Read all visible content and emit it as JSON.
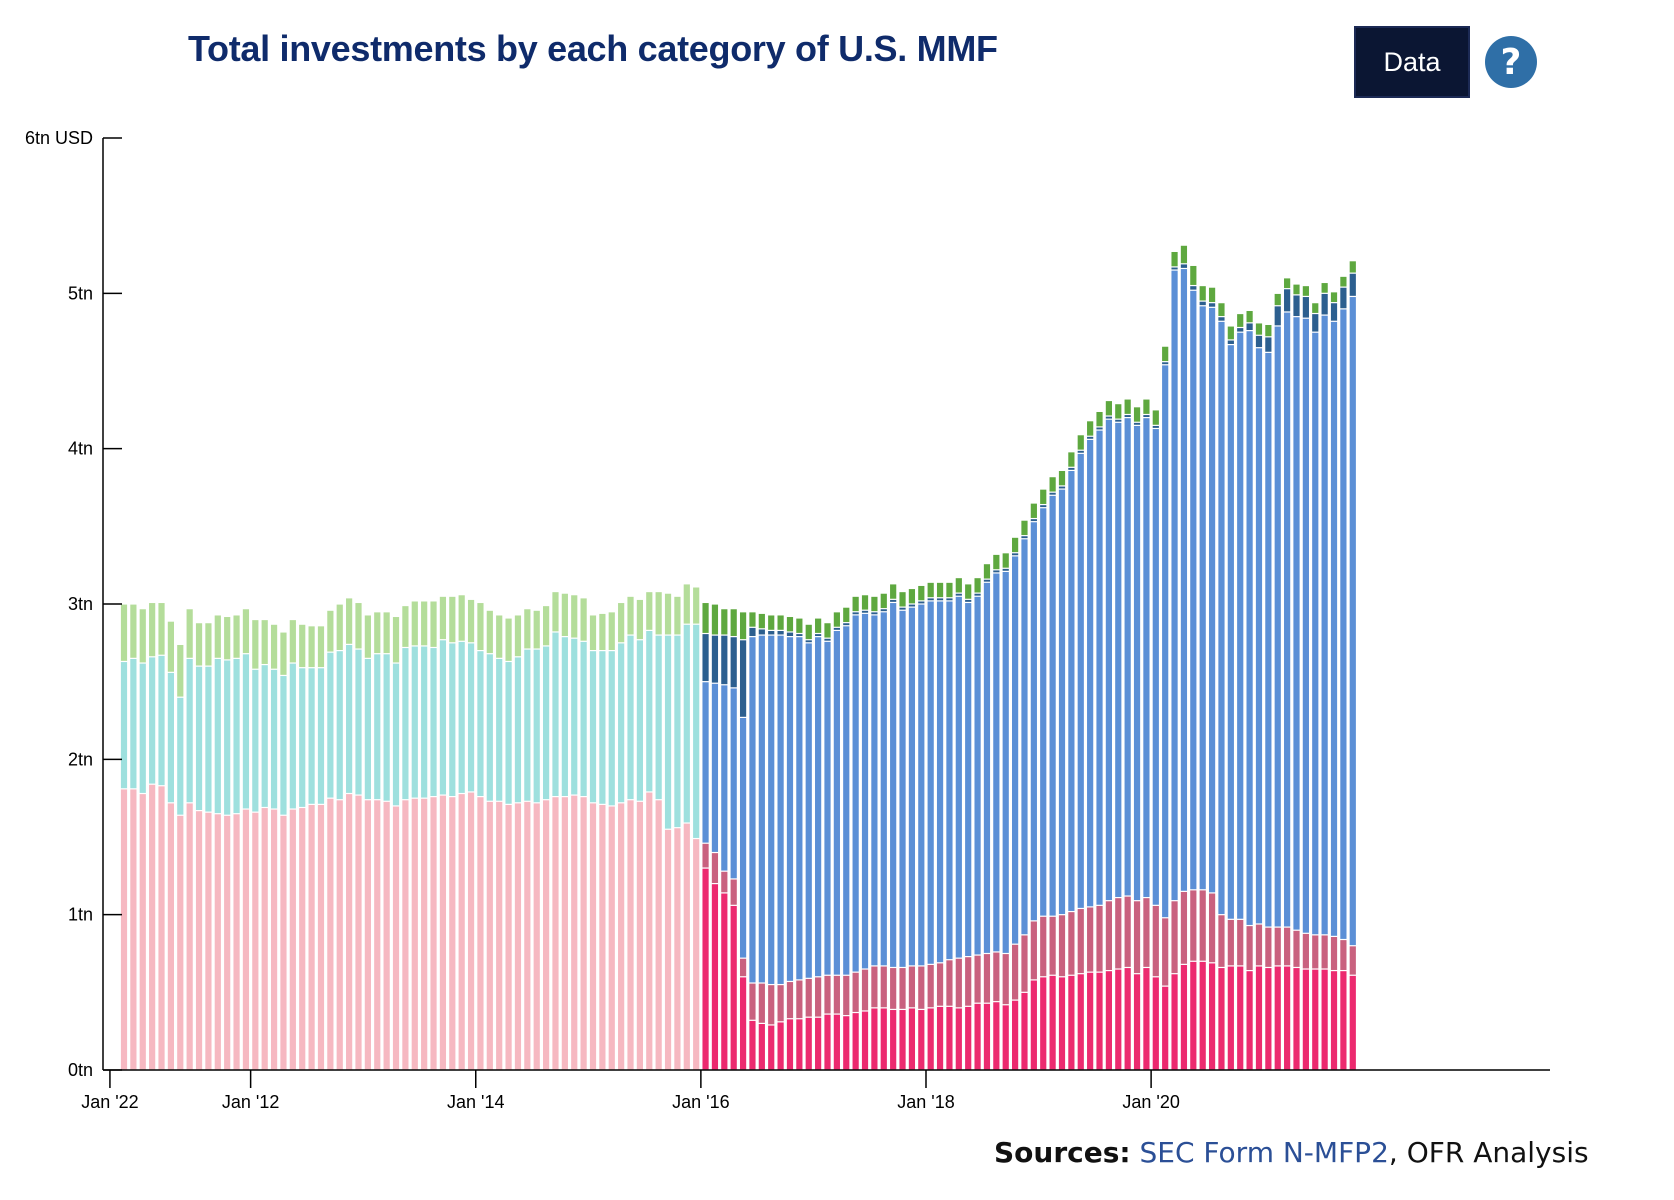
{
  "title": "Total investments by each category of U.S. MMF",
  "data_button": "Data",
  "help_icon": "question-circle-icon",
  "help_glyph": "?",
  "sources": {
    "label": "Sources:",
    "link_text": "SEC Form N-MFP2",
    "separator": ", ",
    "rest": "OFR Analysis"
  },
  "chart_data": {
    "type": "bar",
    "stacked": true,
    "ylim": [
      0,
      6
    ],
    "y_ticks": [
      {
        "value": 0,
        "label": "0tn"
      },
      {
        "value": 1,
        "label": "1tn"
      },
      {
        "value": 2,
        "label": "2tn"
      },
      {
        "value": 3,
        "label": "3tn"
      },
      {
        "value": 4,
        "label": "4tn"
      },
      {
        "value": 5,
        "label": "5tn"
      },
      {
        "value": 6,
        "label": "6tn USD"
      }
    ],
    "x_ticks": [
      {
        "month": "2012-01",
        "label": "Jan '12"
      },
      {
        "month": "2014-01",
        "label": "Jan '14"
      },
      {
        "month": "2016-01",
        "label": "Jan '16"
      },
      {
        "month": "2018-01",
        "label": "Jan '18"
      },
      {
        "month": "2020-01",
        "label": "Jan '20"
      },
      {
        "month": "2022-01",
        "label": "Jan '22"
      }
    ],
    "grid": false,
    "legend": "none",
    "months": [
      "2010-11",
      "2010-12",
      "2011-01",
      "2011-02",
      "2011-03",
      "2011-04",
      "2011-05",
      "2011-06",
      "2011-07",
      "2011-08",
      "2011-09",
      "2011-10",
      "2011-11",
      "2011-12",
      "2012-01",
      "2012-02",
      "2012-03",
      "2012-04",
      "2012-05",
      "2012-06",
      "2012-07",
      "2012-08",
      "2012-09",
      "2012-10",
      "2012-11",
      "2012-12",
      "2013-01",
      "2013-02",
      "2013-03",
      "2013-04",
      "2013-05",
      "2013-06",
      "2013-07",
      "2013-08",
      "2013-09",
      "2013-10",
      "2013-11",
      "2013-12",
      "2014-01",
      "2014-02",
      "2014-03",
      "2014-04",
      "2014-05",
      "2014-06",
      "2014-07",
      "2014-08",
      "2014-09",
      "2014-10",
      "2014-11",
      "2014-12",
      "2015-01",
      "2015-02",
      "2015-03",
      "2015-04",
      "2015-05",
      "2015-06",
      "2015-07",
      "2015-08",
      "2015-09",
      "2015-10",
      "2015-11",
      "2015-12",
      "2016-01",
      "2016-02",
      "2016-03",
      "2016-04",
      "2016-05",
      "2016-06",
      "2016-07",
      "2016-08",
      "2016-09",
      "2016-10",
      "2016-11",
      "2016-12",
      "2017-01",
      "2017-02",
      "2017-03",
      "2017-04",
      "2017-05",
      "2017-06",
      "2017-07",
      "2017-08",
      "2017-09",
      "2017-10",
      "2017-11",
      "2017-12",
      "2018-01",
      "2018-02",
      "2018-03",
      "2018-04",
      "2018-05",
      "2018-06",
      "2018-07",
      "2018-08",
      "2018-09",
      "2018-10",
      "2018-11",
      "2018-12",
      "2019-01",
      "2019-02",
      "2019-03",
      "2019-04",
      "2019-05",
      "2019-06",
      "2019-07",
      "2019-08",
      "2019-09",
      "2019-10",
      "2019-11",
      "2019-12",
      "2020-01",
      "2020-02",
      "2020-03",
      "2020-04",
      "2020-05",
      "2020-06",
      "2020-07",
      "2020-08",
      "2020-09",
      "2020-10",
      "2020-11",
      "2020-12",
      "2021-01",
      "2021-02",
      "2021-03",
      "2021-04",
      "2021-05",
      "2021-06",
      "2021-07",
      "2021-08",
      "2021-09",
      "2021-10",
      "2021-11",
      "2021-12"
    ],
    "series": [
      {
        "color": "#f6b8c1",
        "values": [
          1.81,
          1.81,
          1.78,
          1.84,
          1.83,
          1.72,
          1.64,
          1.72,
          1.67,
          1.66,
          1.65,
          1.64,
          1.65,
          1.68,
          1.66,
          1.69,
          1.68,
          1.64,
          1.68,
          1.69,
          1.71,
          1.71,
          1.75,
          1.74,
          1.78,
          1.77,
          1.74,
          1.74,
          1.73,
          1.7,
          1.74,
          1.75,
          1.75,
          1.76,
          1.77,
          1.76,
          1.78,
          1.79,
          1.76,
          1.73,
          1.73,
          1.71,
          1.72,
          1.73,
          1.72,
          1.74,
          1.76,
          1.76,
          1.77,
          1.76,
          1.72,
          1.71,
          1.7,
          1.72,
          1.74,
          1.73,
          1.79,
          1.74,
          1.55,
          1.56,
          1.59,
          1.49,
          0,
          0,
          0,
          0,
          0,
          0,
          0,
          0,
          0,
          0,
          0,
          0,
          0,
          0,
          0,
          0,
          0,
          0,
          0,
          0,
          0,
          0,
          0,
          0,
          0,
          0,
          0,
          0,
          0,
          0,
          0,
          0,
          0,
          0,
          0,
          0,
          0,
          0,
          0,
          0,
          0,
          0,
          0,
          0,
          0,
          0,
          0,
          0,
          0,
          0,
          0,
          0,
          0,
          0,
          0,
          0,
          0,
          0,
          0,
          0,
          0,
          0,
          0,
          0,
          0,
          0,
          0,
          0,
          0,
          0,
          0,
          0
        ]
      },
      {
        "color": "#9ee0de",
        "values": [
          0.82,
          0.84,
          0.84,
          0.82,
          0.84,
          0.84,
          0.76,
          0.93,
          0.93,
          0.94,
          1.0,
          1.0,
          1.0,
          1.0,
          0.92,
          0.92,
          0.9,
          0.9,
          0.94,
          0.9,
          0.88,
          0.88,
          0.94,
          0.96,
          0.96,
          0.94,
          0.91,
          0.94,
          0.95,
          0.92,
          0.98,
          0.98,
          0.98,
          0.96,
          1.0,
          0.99,
          0.98,
          0.96,
          0.94,
          0.95,
          0.92,
          0.92,
          0.94,
          0.98,
          0.99,
          0.99,
          1.06,
          1.03,
          1.01,
          1.0,
          0.98,
          0.99,
          1.0,
          1.03,
          1.06,
          1.04,
          1.04,
          1.06,
          1.25,
          1.24,
          1.28,
          1.38,
          0,
          0,
          0,
          0,
          0,
          0,
          0,
          0,
          0,
          0,
          0,
          0,
          0,
          0,
          0,
          0,
          0,
          0,
          0,
          0,
          0,
          0,
          0,
          0,
          0,
          0,
          0,
          0,
          0,
          0,
          0,
          0,
          0,
          0,
          0,
          0,
          0,
          0,
          0,
          0,
          0,
          0,
          0,
          0,
          0,
          0,
          0,
          0,
          0,
          0,
          0,
          0,
          0,
          0,
          0,
          0,
          0,
          0,
          0,
          0,
          0,
          0,
          0,
          0,
          0,
          0,
          0,
          0,
          0,
          0,
          0,
          0
        ]
      },
      {
        "color": "#b4dd9a",
        "values": [
          0.37,
          0.35,
          0.35,
          0.35,
          0.34,
          0.33,
          0.34,
          0.32,
          0.28,
          0.28,
          0.28,
          0.28,
          0.28,
          0.29,
          0.32,
          0.29,
          0.29,
          0.28,
          0.28,
          0.28,
          0.27,
          0.27,
          0.27,
          0.3,
          0.3,
          0.3,
          0.28,
          0.27,
          0.27,
          0.3,
          0.27,
          0.29,
          0.29,
          0.3,
          0.28,
          0.3,
          0.3,
          0.28,
          0.31,
          0.28,
          0.28,
          0.28,
          0.27,
          0.26,
          0.25,
          0.26,
          0.26,
          0.28,
          0.28,
          0.28,
          0.23,
          0.24,
          0.25,
          0.26,
          0.25,
          0.26,
          0.25,
          0.28,
          0.27,
          0.25,
          0.26,
          0.24,
          0,
          0,
          0,
          0,
          0,
          0,
          0,
          0,
          0,
          0,
          0,
          0,
          0,
          0,
          0,
          0,
          0,
          0,
          0,
          0,
          0,
          0,
          0,
          0,
          0,
          0,
          0,
          0,
          0,
          0,
          0,
          0,
          0,
          0,
          0,
          0,
          0,
          0,
          0,
          0,
          0,
          0,
          0,
          0,
          0,
          0,
          0,
          0,
          0,
          0,
          0,
          0,
          0,
          0,
          0,
          0,
          0,
          0,
          0,
          0,
          0,
          0,
          0,
          0,
          0,
          0,
          0,
          0,
          0,
          0,
          0,
          0
        ]
      },
      {
        "color": "#ec2a6f",
        "values": [
          0,
          0,
          0,
          0,
          0,
          0,
          0,
          0,
          0,
          0,
          0,
          0,
          0,
          0,
          0,
          0,
          0,
          0,
          0,
          0,
          0,
          0,
          0,
          0,
          0,
          0,
          0,
          0,
          0,
          0,
          0,
          0,
          0,
          0,
          0,
          0,
          0,
          0,
          0,
          0,
          0,
          0,
          0,
          0,
          0,
          0,
          0,
          0,
          0,
          0,
          0,
          0,
          0,
          0,
          0,
          0,
          0,
          0,
          0,
          0,
          0,
          0,
          1.3,
          1.2,
          1.14,
          1.06,
          0.6,
          0.32,
          0.3,
          0.29,
          0.31,
          0.33,
          0.33,
          0.34,
          0.34,
          0.36,
          0.36,
          0.35,
          0.37,
          0.38,
          0.4,
          0.4,
          0.39,
          0.39,
          0.4,
          0.39,
          0.4,
          0.41,
          0.41,
          0.4,
          0.41,
          0.43,
          0.43,
          0.44,
          0.42,
          0.45,
          0.5,
          0.58,
          0.6,
          0.61,
          0.6,
          0.61,
          0.62,
          0.63,
          0.63,
          0.64,
          0.65,
          0.66,
          0.62,
          0.66,
          0.6,
          0.54,
          0.62,
          0.68,
          0.7,
          0.7,
          0.69,
          0.66,
          0.67,
          0.67,
          0.64,
          0.67,
          0.66,
          0.67,
          0.67,
          0.66,
          0.65,
          0.65,
          0.65,
          0.64,
          0.64,
          0.61
        ]
      },
      {
        "color": "#c9617f",
        "values": [
          0,
          0,
          0,
          0,
          0,
          0,
          0,
          0,
          0,
          0,
          0,
          0,
          0,
          0,
          0,
          0,
          0,
          0,
          0,
          0,
          0,
          0,
          0,
          0,
          0,
          0,
          0,
          0,
          0,
          0,
          0,
          0,
          0,
          0,
          0,
          0,
          0,
          0,
          0,
          0,
          0,
          0,
          0,
          0,
          0,
          0,
          0,
          0,
          0,
          0,
          0,
          0,
          0,
          0,
          0,
          0,
          0,
          0,
          0,
          0,
          0,
          0,
          0.16,
          0.2,
          0.14,
          0.17,
          0.12,
          0.24,
          0.26,
          0.26,
          0.24,
          0.24,
          0.25,
          0.25,
          0.26,
          0.25,
          0.25,
          0.26,
          0.26,
          0.27,
          0.27,
          0.27,
          0.27,
          0.27,
          0.27,
          0.28,
          0.28,
          0.28,
          0.3,
          0.32,
          0.32,
          0.31,
          0.32,
          0.32,
          0.33,
          0.36,
          0.37,
          0.38,
          0.39,
          0.38,
          0.4,
          0.41,
          0.42,
          0.42,
          0.43,
          0.45,
          0.46,
          0.46,
          0.47,
          0.45,
          0.46,
          0.44,
          0.47,
          0.47,
          0.46,
          0.46,
          0.45,
          0.34,
          0.3,
          0.3,
          0.29,
          0.27,
          0.26,
          0.25,
          0.25,
          0.24,
          0.23,
          0.22,
          0.22,
          0.22,
          0.2,
          0.19
        ]
      },
      {
        "color": "#5b8fd6",
        "values": [
          0,
          0,
          0,
          0,
          0,
          0,
          0,
          0,
          0,
          0,
          0,
          0,
          0,
          0,
          0,
          0,
          0,
          0,
          0,
          0,
          0,
          0,
          0,
          0,
          0,
          0,
          0,
          0,
          0,
          0,
          0,
          0,
          0,
          0,
          0,
          0,
          0,
          0,
          0,
          0,
          0,
          0,
          0,
          0,
          0,
          0,
          0,
          0,
          0,
          0,
          0,
          0,
          0,
          0,
          0,
          0,
          0,
          0,
          0,
          0,
          0,
          0,
          1.04,
          1.09,
          1.2,
          1.23,
          1.55,
          2.23,
          2.24,
          2.25,
          2.25,
          2.22,
          2.21,
          2.16,
          2.19,
          2.15,
          2.22,
          2.25,
          2.3,
          2.29,
          2.26,
          2.28,
          2.35,
          2.3,
          2.31,
          2.33,
          2.34,
          2.33,
          2.31,
          2.33,
          2.28,
          2.31,
          2.39,
          2.44,
          2.46,
          2.5,
          2.55,
          2.57,
          2.63,
          2.71,
          2.74,
          2.84,
          2.93,
          3.01,
          3.06,
          3.1,
          3.06,
          3.08,
          3.06,
          3.09,
          3.07,
          3.56,
          4.06,
          4.01,
          3.86,
          3.76,
          3.77,
          3.82,
          3.7,
          3.78,
          3.83,
          3.71,
          3.7,
          3.87,
          3.96,
          3.95,
          3.96,
          3.88,
          3.99,
          3.96,
          4.06,
          4.18
        ]
      },
      {
        "color": "#2c5f8f",
        "values": [
          0,
          0,
          0,
          0,
          0,
          0,
          0,
          0,
          0,
          0,
          0,
          0,
          0,
          0,
          0,
          0,
          0,
          0,
          0,
          0,
          0,
          0,
          0,
          0,
          0,
          0,
          0,
          0,
          0,
          0,
          0,
          0,
          0,
          0,
          0,
          0,
          0,
          0,
          0,
          0,
          0,
          0,
          0,
          0,
          0,
          0,
          0,
          0,
          0,
          0,
          0,
          0,
          0,
          0,
          0,
          0,
          0,
          0,
          0,
          0,
          0,
          0,
          0.31,
          0.31,
          0.32,
          0.33,
          0.5,
          0.06,
          0.04,
          0.03,
          0.03,
          0.03,
          0.02,
          0.02,
          0.02,
          0.02,
          0.02,
          0.02,
          0.02,
          0.02,
          0.02,
          0.02,
          0.02,
          0.02,
          0.02,
          0.02,
          0.02,
          0.02,
          0.02,
          0.02,
          0.02,
          0.02,
          0.02,
          0.02,
          0.02,
          0.02,
          0.02,
          0.02,
          0.02,
          0.02,
          0.02,
          0.02,
          0.02,
          0.02,
          0.02,
          0.02,
          0.02,
          0.02,
          0.02,
          0.02,
          0.02,
          0.02,
          0.02,
          0.03,
          0.03,
          0.03,
          0.03,
          0.03,
          0.03,
          0.03,
          0.05,
          0.08,
          0.1,
          0.13,
          0.15,
          0.14,
          0.14,
          0.12,
          0.14,
          0.12,
          0.14,
          0.15
        ]
      },
      {
        "color": "#5ea83f",
        "values": [
          0,
          0,
          0,
          0,
          0,
          0,
          0,
          0,
          0,
          0,
          0,
          0,
          0,
          0,
          0,
          0,
          0,
          0,
          0,
          0,
          0,
          0,
          0,
          0,
          0,
          0,
          0,
          0,
          0,
          0,
          0,
          0,
          0,
          0,
          0,
          0,
          0,
          0,
          0,
          0,
          0,
          0,
          0,
          0,
          0,
          0,
          0,
          0,
          0,
          0,
          0,
          0,
          0,
          0,
          0,
          0,
          0,
          0,
          0,
          0,
          0,
          0,
          0.2,
          0.2,
          0.17,
          0.18,
          0.18,
          0.1,
          0.1,
          0.1,
          0.1,
          0.1,
          0.1,
          0.1,
          0.1,
          0.1,
          0.1,
          0.1,
          0.1,
          0.1,
          0.1,
          0.1,
          0.1,
          0.1,
          0.1,
          0.1,
          0.1,
          0.1,
          0.1,
          0.1,
          0.1,
          0.1,
          0.1,
          0.1,
          0.1,
          0.1,
          0.1,
          0.1,
          0.1,
          0.1,
          0.1,
          0.1,
          0.1,
          0.1,
          0.1,
          0.1,
          0.1,
          0.1,
          0.1,
          0.1,
          0.1,
          0.1,
          0.1,
          0.12,
          0.13,
          0.1,
          0.1,
          0.09,
          0.09,
          0.09,
          0.08,
          0.08,
          0.08,
          0.08,
          0.07,
          0.07,
          0.07,
          0.07,
          0.07,
          0.07,
          0.07,
          0.08
        ]
      }
    ]
  }
}
